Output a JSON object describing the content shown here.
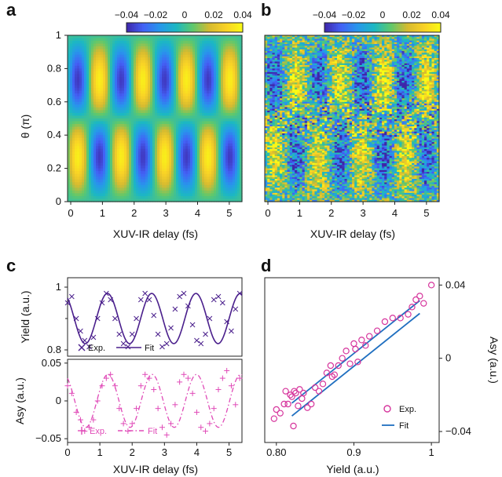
{
  "panels": {
    "a": {
      "letter": "a"
    },
    "b": {
      "letter": "b"
    },
    "c": {
      "letter": "c"
    },
    "d": {
      "letter": "d"
    }
  },
  "colorbar": {
    "ticks": [
      "−0.04",
      "−0.02",
      "0",
      "0.02",
      "0.04"
    ],
    "values": [
      -0.04,
      -0.02,
      0,
      0.02,
      0.04
    ],
    "colormap": [
      "#3e26a8",
      "#4361f6",
      "#2797eb",
      "#1cb8c2",
      "#5fc86c",
      "#d6ba30",
      "#f9d226",
      "#f9fb15"
    ]
  },
  "labels": {
    "theta_label": "θ (π)",
    "delay_label": "XUV-IR delay (fs)",
    "yield_label": "Yield (a.u.)",
    "asy_label": "Asy (a.u.)",
    "yield_xlabel": "Yield (a.u.)"
  },
  "legends": {
    "c_top": {
      "exp": "Exp.",
      "fit": "Fit"
    },
    "c_bottom": {
      "exp": "Exp.",
      "fit": "Fit"
    },
    "d": {
      "exp": "Exp.",
      "fit": "Fit"
    }
  },
  "colors": {
    "purple": "#4a1f8c",
    "magenta": "#e04bb8",
    "blue": "#1f6fc0",
    "pink_marker": "#d6349c"
  },
  "chart_data": [
    {
      "panel": "a",
      "type": "heatmap",
      "title": "",
      "xlabel": "XUV-IR delay (fs)",
      "ylabel": "θ (π)",
      "xlim": [
        -0.1,
        5.4
      ],
      "ylim": [
        0,
        1
      ],
      "xticks": [
        "0",
        "1",
        "2",
        "3",
        "4",
        "5"
      ],
      "yticks": [
        "0",
        "0.2",
        "0.4",
        "0.6",
        "0.8",
        "1"
      ],
      "value_range": [
        -0.04,
        0.04
      ],
      "pattern": "oscillating asymmetry, period ~1.3 fs, antisymmetric about theta = 0.5, amplitude ~0.04"
    },
    {
      "panel": "b",
      "type": "heatmap",
      "title": "",
      "xlabel": "XUV-IR delay (fs)",
      "ylabel": "",
      "xlim": [
        -0.1,
        5.4
      ],
      "ylim": [
        0,
        1
      ],
      "xticks": [
        "0",
        "1",
        "2",
        "3",
        "4",
        "5"
      ],
      "value_range": [
        -0.04,
        0.04
      ],
      "pattern": "experimental data, noisy version of panel a"
    },
    {
      "panel": "c-top",
      "type": "line",
      "title": "",
      "xlabel": "",
      "ylabel": "Yield (a.u.)",
      "xlim": [
        0,
        5.4
      ],
      "ylim": [
        0.78,
        1.03
      ],
      "yticks": [
        "0.8",
        "",
        "1"
      ],
      "series": [
        {
          "name": "Exp.",
          "x": [
            0.0,
            0.13,
            0.27,
            0.4,
            0.53,
            0.67,
            0.8,
            0.93,
            1.07,
            1.2,
            1.33,
            1.47,
            1.6,
            1.73,
            1.87,
            2.0,
            2.13,
            2.27,
            2.4,
            2.53,
            2.67,
            2.8,
            2.93,
            3.07,
            3.2,
            3.33,
            3.47,
            3.6,
            3.73,
            3.87,
            4.0,
            4.13,
            4.27,
            4.4,
            4.53,
            4.67,
            4.8,
            4.93,
            5.07,
            5.2,
            5.33
          ],
          "y": [
            0.95,
            0.97,
            0.9,
            0.86,
            0.83,
            0.81,
            0.84,
            0.9,
            0.95,
            0.98,
            0.96,
            0.9,
            0.85,
            0.82,
            0.81,
            0.85,
            0.9,
            0.96,
            0.98,
            0.96,
            0.91,
            0.85,
            0.81,
            0.82,
            0.87,
            0.93,
            0.97,
            0.98,
            0.94,
            0.88,
            0.83,
            0.82,
            0.85,
            0.9,
            0.96,
            0.97,
            0.95,
            0.89,
            0.86,
            0.93,
            0.98
          ]
        },
        {
          "name": "Fit",
          "model": "0.90 - 0.08*cos(2*pi*(x - 0.55)/1.37)"
        }
      ]
    },
    {
      "panel": "c-bottom",
      "type": "line",
      "title": "",
      "xlabel": "XUV-IR delay (fs)",
      "ylabel": "Asy (a.u.)",
      "xlim": [
        0,
        5.4
      ],
      "ylim": [
        -0.055,
        0.055
      ],
      "xticks": [
        "0",
        "1",
        "2",
        "3",
        "4",
        "5"
      ],
      "yticks": [
        "−0.05",
        "0",
        "0.05"
      ],
      "series": [
        {
          "name": "Exp.",
          "x": [
            0.0,
            0.13,
            0.27,
            0.4,
            0.53,
            0.67,
            0.8,
            0.93,
            1.07,
            1.2,
            1.33,
            1.47,
            1.6,
            1.73,
            1.87,
            2.0,
            2.13,
            2.27,
            2.4,
            2.53,
            2.67,
            2.8,
            2.93,
            3.07,
            3.2,
            3.33,
            3.47,
            3.6,
            3.73,
            3.87,
            4.0,
            4.13,
            4.27,
            4.4,
            4.53,
            4.67,
            4.8,
            4.93,
            5.07,
            5.2,
            5.33
          ],
          "y": [
            0.02,
            0.01,
            -0.015,
            -0.025,
            -0.04,
            -0.035,
            -0.025,
            0.0,
            0.02,
            0.03,
            0.035,
            0.02,
            -0.01,
            -0.03,
            -0.04,
            -0.03,
            -0.01,
            0.02,
            0.035,
            0.03,
            0.015,
            -0.01,
            -0.035,
            -0.045,
            -0.03,
            -0.005,
            0.025,
            0.035,
            0.03,
            0.01,
            -0.015,
            -0.035,
            -0.04,
            -0.03,
            -0.01,
            0.015,
            0.03,
            0.04,
            0.02,
            -0.005,
            0.03
          ]
        },
        {
          "name": "Fit",
          "model": "0.035*cos(2*pi*(x - 1.25)/1.37)"
        }
      ]
    },
    {
      "panel": "d",
      "type": "scatter",
      "title": "",
      "xlabel": "Yield (a.u.)",
      "ylabel": "Asy (a.u.)",
      "xlim": [
        0.785,
        1.01
      ],
      "ylim": [
        -0.046,
        0.044
      ],
      "xticks": [
        "0.80",
        "0.9",
        "1"
      ],
      "yticks": [
        "0.04",
        "0",
        "−0.04"
      ],
      "yaxis_side": "right",
      "series": [
        {
          "name": "Exp.",
          "x": [
            0.797,
            0.8,
            0.805,
            0.81,
            0.812,
            0.815,
            0.818,
            0.82,
            0.822,
            0.823,
            0.825,
            0.828,
            0.83,
            0.833,
            0.835,
            0.84,
            0.845,
            0.85,
            0.855,
            0.86,
            0.865,
            0.87,
            0.872,
            0.875,
            0.88,
            0.885,
            0.89,
            0.895,
            0.9,
            0.902,
            0.905,
            0.91,
            0.915,
            0.92,
            0.93,
            0.94,
            0.95,
            0.96,
            0.97,
            0.975,
            0.98,
            0.985,
            0.99,
            1.0
          ],
          "y": [
            -0.033,
            -0.028,
            -0.03,
            -0.025,
            -0.018,
            -0.025,
            -0.02,
            -0.021,
            -0.037,
            -0.018,
            -0.019,
            -0.026,
            -0.017,
            -0.022,
            -0.019,
            -0.027,
            -0.025,
            -0.016,
            -0.018,
            -0.014,
            -0.008,
            -0.004,
            -0.01,
            -0.009,
            -0.004,
            0.0,
            0.004,
            -0.003,
            0.008,
            0.005,
            -0.002,
            0.01,
            0.007,
            0.012,
            0.015,
            0.02,
            0.022,
            0.022,
            0.024,
            0.028,
            0.032,
            0.034,
            0.03,
            0.04
          ]
        },
        {
          "name": "Fit",
          "x": [
            0.82,
            0.985
          ],
          "y": [
            -0.028,
            0.028
          ]
        }
      ]
    }
  ]
}
